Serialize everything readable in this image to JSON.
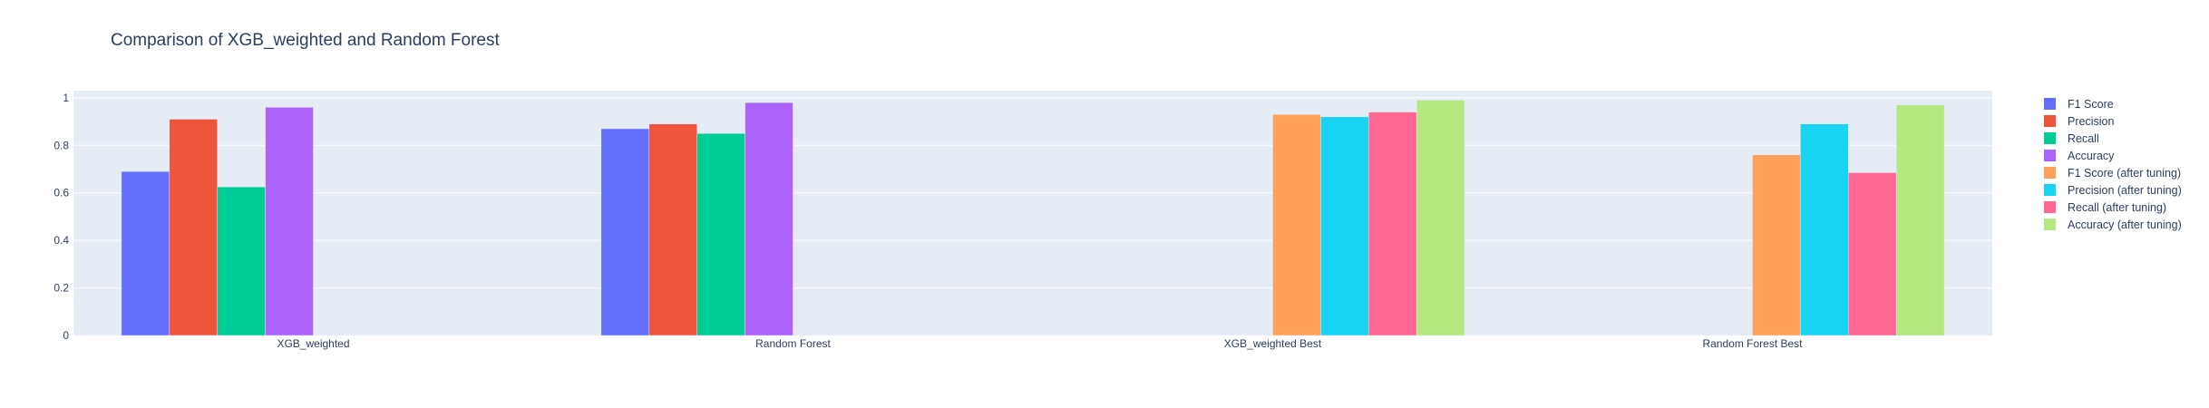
{
  "chart_data": {
    "type": "bar",
    "title": "Comparison of XGB_weighted and Random Forest",
    "xlabel": "",
    "ylabel": "",
    "categories": [
      "XGB_weighted",
      "Random Forest",
      "XGB_weighted Best",
      "Random Forest Best"
    ],
    "ylim": [
      0,
      1.03
    ],
    "yticks": [
      0,
      0.2,
      0.4,
      0.6,
      0.8,
      1
    ],
    "ytick_labels": [
      "0",
      "0.2",
      "0.4",
      "0.6",
      "0.8",
      "1"
    ],
    "grid": true,
    "legend_position": "right",
    "series": [
      {
        "name": "F1 Score",
        "color": "#636efa",
        "values": [
          0.69,
          0.87,
          null,
          null
        ]
      },
      {
        "name": "Precision",
        "color": "#ef553b",
        "values": [
          0.91,
          0.89,
          null,
          null
        ]
      },
      {
        "name": "Recall",
        "color": "#00cc96",
        "values": [
          0.625,
          0.85,
          null,
          null
        ]
      },
      {
        "name": "Accuracy",
        "color": "#ab63fa",
        "values": [
          0.96,
          0.98,
          null,
          null
        ]
      },
      {
        "name": "F1 Score (after tuning)",
        "color": "#ffa15a",
        "values": [
          null,
          null,
          0.93,
          0.76
        ]
      },
      {
        "name": "Precision (after tuning)",
        "color": "#19d3f3",
        "values": [
          null,
          null,
          0.92,
          0.89
        ]
      },
      {
        "name": "Recall (after tuning)",
        "color": "#ff6692",
        "values": [
          null,
          null,
          0.94,
          0.685
        ]
      },
      {
        "name": "Accuracy (after tuning)",
        "color": "#b6e880",
        "values": [
          null,
          null,
          0.99,
          0.97
        ]
      }
    ],
    "colors": {
      "plot_background": "#e5ecf6",
      "gridline": "#ffffff",
      "text": "#2a3f5f"
    }
  }
}
